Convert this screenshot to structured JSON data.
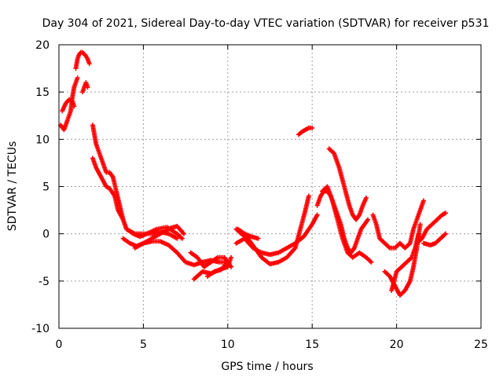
{
  "chart_data": {
    "type": "scatter",
    "title": "Day 304 of 2021, Sidereal Day-to-day VTEC variation (SDTVAR) for receiver p531",
    "xlabel": "GPS time / hours",
    "ylabel": "SDTVAR / TECUs",
    "xlim": [
      0,
      25
    ],
    "ylim": [
      -10,
      20
    ],
    "xticks": [
      0,
      5,
      10,
      15,
      20,
      25
    ],
    "yticks": [
      -10,
      -5,
      0,
      5,
      10,
      15,
      20
    ],
    "xtick_labels": [
      "0",
      "5",
      "10",
      "15",
      "20",
      "25"
    ],
    "ytick_labels": [
      "-10",
      "-5",
      "0",
      "5",
      "10",
      "15",
      "20"
    ],
    "grid": true,
    "marker": "+",
    "color": "#ff0000",
    "series": [
      {
        "name": "s1",
        "x": [
          0.1,
          0.3,
          0.5,
          0.7,
          0.8,
          0.9,
          1.0,
          1.1
        ],
        "y": [
          11.5,
          11.0,
          12.0,
          13.0,
          14.5,
          15.5,
          16.0,
          16.5
        ]
      },
      {
        "name": "s2",
        "x": [
          0.2,
          0.4,
          0.6,
          0.8,
          0.9
        ],
        "y": [
          13.0,
          13.8,
          14.2,
          14.0,
          13.5
        ]
      },
      {
        "name": "s3",
        "x": [
          1.0,
          1.1,
          1.2,
          1.3,
          1.4,
          1.5,
          1.6,
          1.7,
          1.8
        ],
        "y": [
          17.5,
          18.5,
          19.0,
          19.2,
          19.2,
          19.0,
          18.8,
          18.5,
          18.0
        ]
      },
      {
        "name": "s4",
        "x": [
          1.4,
          1.5,
          1.6,
          1.7
        ],
        "y": [
          15.0,
          15.5,
          16.0,
          15.5
        ]
      },
      {
        "name": "s5",
        "x": [
          2.0,
          2.2,
          2.4,
          2.6,
          2.8,
          3.0,
          3.2,
          3.4,
          3.6,
          3.8,
          4.0,
          4.4,
          4.8,
          5.2,
          5.8,
          6.4,
          7.0,
          7.3
        ],
        "y": [
          11.5,
          9.5,
          8.5,
          7.5,
          6.5,
          6.5,
          6.0,
          4.5,
          3.0,
          1.5,
          0.5,
          0.0,
          -0.3,
          0.0,
          0.5,
          0.7,
          0.0,
          -0.5
        ]
      },
      {
        "name": "s6",
        "x": [
          2.0,
          2.2,
          2.5,
          2.8,
          3.0,
          3.3,
          3.5,
          3.8,
          4.0,
          4.5,
          5.0,
          5.5,
          6.0,
          6.5,
          7.0
        ],
        "y": [
          8.0,
          7.0,
          6.0,
          5.0,
          4.8,
          4.0,
          2.5,
          1.5,
          0.5,
          0.0,
          0.0,
          0.0,
          0.2,
          0.0,
          -0.5
        ]
      },
      {
        "name": "s7",
        "x": [
          3.8,
          4.2,
          4.6,
          5.0,
          5.5,
          6.0,
          6.5,
          7.0,
          7.5,
          8.0,
          8.5,
          9.0,
          9.5,
          10.0
        ],
        "y": [
          -0.5,
          -1.0,
          -1.3,
          -1.0,
          -0.8,
          -0.8,
          -1.2,
          -2.0,
          -3.0,
          -3.3,
          -3.0,
          -2.8,
          -3.0,
          -3.0
        ]
      },
      {
        "name": "s8",
        "x": [
          4.5,
          5.0,
          5.5,
          6.0,
          6.3,
          6.6,
          7.0,
          7.4
        ],
        "y": [
          -1.5,
          -1.0,
          -0.5,
          0.0,
          0.3,
          0.6,
          0.8,
          0.0
        ]
      },
      {
        "name": "s9",
        "x": [
          7.8,
          8.2,
          8.6,
          9.0,
          9.4,
          9.8,
          10.2
        ],
        "y": [
          -2.0,
          -2.5,
          -3.5,
          -3.0,
          -2.5,
          -2.5,
          -3.5
        ]
      },
      {
        "name": "s10",
        "x": [
          8.0,
          8.5,
          9.0,
          9.5,
          10.0,
          10.2
        ],
        "y": [
          -4.8,
          -4.0,
          -4.2,
          -3.8,
          -3.5,
          -2.5
        ]
      },
      {
        "name": "s11",
        "x": [
          8.8,
          9.2,
          9.6,
          10.0
        ],
        "y": [
          -4.5,
          -4.0,
          -3.8,
          -3.0
        ]
      },
      {
        "name": "s12",
        "x": [
          10.5,
          10.8,
          11.2,
          11.6,
          12.0,
          12.5,
          13.0,
          13.5,
          14.0,
          14.3,
          14.6,
          14.8
        ],
        "y": [
          0.5,
          0.0,
          -0.5,
          -1.5,
          -2.5,
          -3.2,
          -3.0,
          -2.5,
          -1.5,
          0.5,
          2.5,
          4.0
        ]
      },
      {
        "name": "s13",
        "x": [
          10.5,
          11.0,
          11.5,
          12.0,
          12.5,
          13.0,
          13.5,
          14.0,
          14.5,
          15.0,
          15.3
        ],
        "y": [
          -1.0,
          -0.5,
          -1.5,
          -2.0,
          -2.2,
          -2.0,
          -1.5,
          -1.0,
          -0.3,
          1.0,
          2.0
        ]
      },
      {
        "name": "s14",
        "x": [
          10.6,
          11.0,
          11.4,
          11.8
        ],
        "y": [
          0.5,
          0.0,
          -0.3,
          -0.5
        ]
      },
      {
        "name": "s15",
        "x": [
          14.2,
          14.4,
          14.6,
          14.8,
          15.0
        ],
        "y": [
          10.5,
          10.8,
          11.0,
          11.2,
          11.2
        ]
      },
      {
        "name": "s16",
        "x": [
          15.3,
          15.5,
          15.7,
          15.9,
          16.1,
          16.3,
          16.5,
          16.7,
          16.9,
          17.1,
          17.3,
          17.5,
          17.7,
          17.9,
          18.1,
          18.3
        ],
        "y": [
          3.0,
          4.0,
          4.5,
          4.5,
          4.0,
          3.0,
          2.0,
          1.0,
          -0.5,
          -1.5,
          -2.0,
          -1.5,
          -0.5,
          0.5,
          1.0,
          1.5
        ]
      },
      {
        "name": "s17",
        "x": [
          16.0,
          16.3,
          16.6,
          16.9,
          17.2,
          17.4,
          17.6,
          17.8,
          18.0,
          18.2
        ],
        "y": [
          9.0,
          8.5,
          7.0,
          5.0,
          3.0,
          2.0,
          1.5,
          2.0,
          3.0,
          3.8
        ]
      },
      {
        "name": "s18",
        "x": [
          15.6,
          15.9,
          16.2,
          16.5,
          16.8,
          17.1,
          17.4,
          17.8,
          18.2,
          18.5
        ],
        "y": [
          4.5,
          5.0,
          3.5,
          1.5,
          -0.5,
          -2.0,
          -2.5,
          -2.0,
          -2.5,
          -3.0
        ]
      },
      {
        "name": "s19",
        "x": [
          18.6,
          18.8,
          19.0,
          19.3,
          19.6,
          19.9,
          20.2,
          20.5,
          20.8,
          21.0,
          21.2,
          21.4,
          21.6
        ],
        "y": [
          2.0,
          1.0,
          -0.5,
          -1.0,
          -1.5,
          -1.5,
          -1.0,
          -1.5,
          -1.0,
          0.5,
          1.5,
          2.5,
          3.5
        ]
      },
      {
        "name": "s20",
        "x": [
          19.3,
          19.6,
          19.9,
          20.2,
          20.5,
          20.8,
          21.0,
          21.2,
          21.4
        ],
        "y": [
          -4.0,
          -4.5,
          -5.5,
          -6.5,
          -6.0,
          -5.0,
          -3.5,
          -1.5,
          1.0
        ]
      },
      {
        "name": "s21",
        "x": [
          19.7,
          20.0,
          20.3,
          20.6,
          20.9,
          21.1,
          21.3
        ],
        "y": [
          -6.0,
          -4.0,
          -3.5,
          -3.0,
          -2.5,
          -1.5,
          0.0
        ]
      },
      {
        "name": "s22",
        "x": [
          21.2,
          21.5,
          21.8,
          22.1,
          22.4,
          22.7,
          22.9
        ],
        "y": [
          -1.0,
          -0.5,
          0.5,
          1.0,
          1.5,
          2.0,
          2.2
        ]
      },
      {
        "name": "s23",
        "x": [
          21.6,
          22.0,
          22.3,
          22.6,
          22.9
        ],
        "y": [
          -1.0,
          -1.2,
          -1.0,
          -0.5,
          0.0
        ]
      }
    ]
  }
}
